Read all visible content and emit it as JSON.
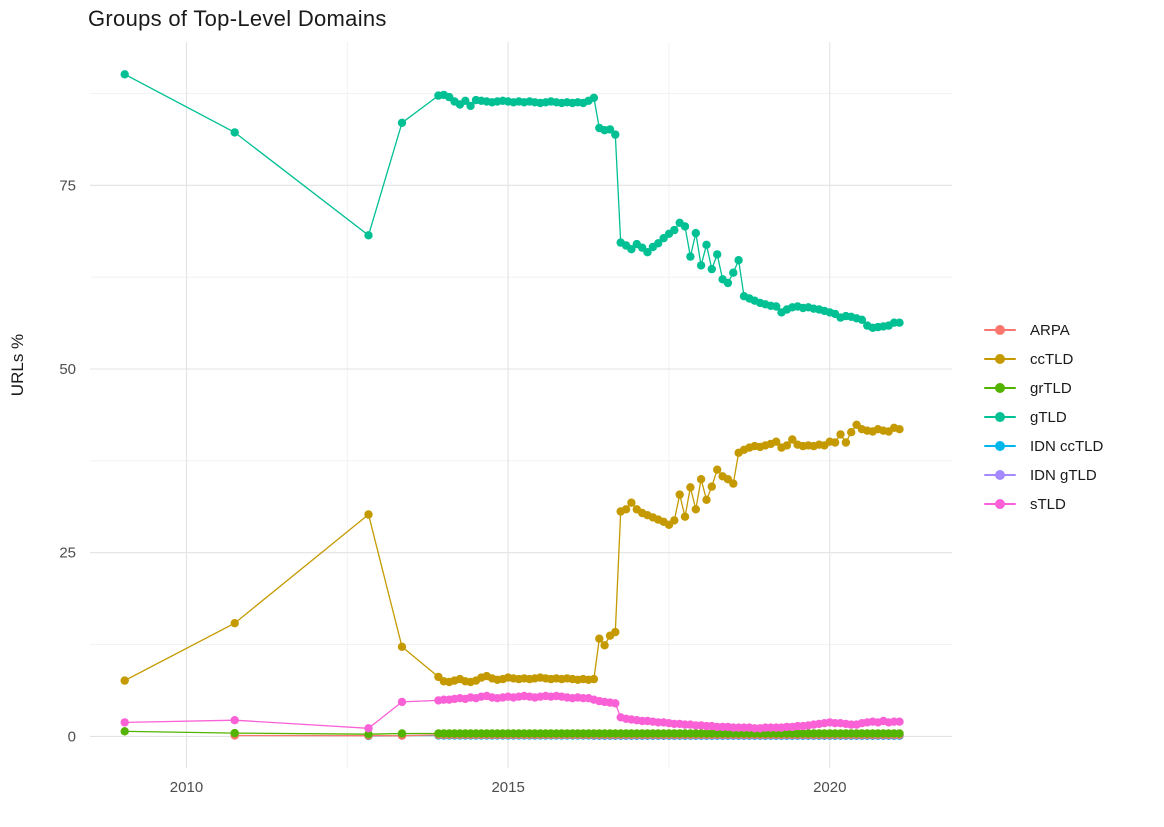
{
  "chart_data": {
    "type": "line",
    "title": "Groups of Top-Level Domains",
    "xlabel": "",
    "ylabel": "URLs %",
    "x_unit": "year",
    "xlim": [
      2008.5,
      2021.9
    ],
    "ylim": [
      -4.3,
      94.5
    ],
    "x_ticks": [
      2010,
      2015,
      2020
    ],
    "x_minor_gridlines": [
      2012.5,
      2017.5
    ],
    "y_ticks": [
      0,
      25,
      50,
      75
    ],
    "y_minor_gridlines": [
      12.5,
      37.5,
      62.5,
      87.5
    ],
    "grid": "on",
    "legend_position": "right",
    "draw_order": [
      "IDN gTLD",
      "IDN ccTLD",
      "ARPA",
      "grTLD",
      "sTLD",
      "ccTLD",
      "gTLD"
    ],
    "series": [
      {
        "name": "ARPA",
        "color": "#F8766D",
        "sparse": [
          [
            2010.75,
            0.12
          ],
          [
            2012.83,
            0.1
          ],
          [
            2013.35,
            0.1
          ]
        ],
        "fill": {
          "from": 2013.9167,
          "to": 2021.0833,
          "step": 0.083333,
          "y": 0.2
        }
      },
      {
        "name": "ccTLD",
        "color": "#C49A00",
        "sparse": [
          [
            2009.04,
            7.6
          ],
          [
            2010.75,
            15.4
          ],
          [
            2012.83,
            30.2
          ],
          [
            2013.35,
            12.2
          ]
        ],
        "dense": {
          "start": 2013.9167,
          "step": 0.083333,
          "y": [
            8.1,
            7.5,
            7.4,
            7.6,
            7.8,
            7.5,
            7.4,
            7.6,
            8.0,
            8.2,
            7.9,
            7.7,
            7.8,
            8.0,
            7.9,
            7.8,
            7.9,
            7.8,
            7.9,
            8.0,
            7.9,
            7.8,
            7.9,
            7.8,
            7.9,
            7.8,
            7.7,
            7.8,
            7.7,
            7.8,
            13.3,
            12.4,
            13.7,
            14.2,
            30.6,
            30.9,
            31.8,
            30.9,
            30.4,
            30.1,
            29.8,
            29.5,
            29.2,
            28.8,
            29.4,
            32.9,
            29.9,
            33.9,
            30.9,
            35.0,
            32.2,
            34.0,
            36.3,
            35.4,
            35.0,
            34.4,
            38.6,
            39.0,
            39.3,
            39.5,
            39.4,
            39.6,
            39.8,
            40.1,
            39.3,
            39.6,
            40.4,
            39.7,
            39.5,
            39.6,
            39.5,
            39.7,
            39.6,
            40.1,
            40.0,
            41.1,
            40.0,
            41.4,
            42.4,
            41.8,
            41.6,
            41.5,
            41.8,
            41.6,
            41.5,
            42.0,
            41.8
          ]
        }
      },
      {
        "name": "grTLD",
        "color": "#53B400",
        "sparse": [
          [
            2009.04,
            0.7
          ],
          [
            2010.75,
            0.45
          ],
          [
            2012.83,
            0.3
          ],
          [
            2013.35,
            0.4
          ]
        ],
        "fill": {
          "from": 2013.9167,
          "to": 2021.0833,
          "step": 0.083333,
          "y": 0.4
        }
      },
      {
        "name": "gTLD",
        "color": "#00C094",
        "sparse": [
          [
            2009.04,
            90.1
          ],
          [
            2010.75,
            82.2
          ],
          [
            2012.83,
            68.2
          ],
          [
            2013.35,
            83.5
          ]
        ],
        "dense": {
          "start": 2013.9167,
          "step": 0.083333,
          "y": [
            87.2,
            87.3,
            87.0,
            86.4,
            86.0,
            86.5,
            85.8,
            86.6,
            86.5,
            86.4,
            86.3,
            86.4,
            86.5,
            86.4,
            86.3,
            86.4,
            86.3,
            86.4,
            86.3,
            86.2,
            86.3,
            86.4,
            86.3,
            86.2,
            86.3,
            86.2,
            86.3,
            86.2,
            86.5,
            86.9,
            82.8,
            82.5,
            82.6,
            81.9,
            67.2,
            66.8,
            66.3,
            67.0,
            66.5,
            65.9,
            66.6,
            67.1,
            67.8,
            68.4,
            68.9,
            69.9,
            69.4,
            65.3,
            68.5,
            64.1,
            66.9,
            63.6,
            65.6,
            62.2,
            61.7,
            63.1,
            64.8,
            59.9,
            59.6,
            59.3,
            59.0,
            58.8,
            58.6,
            58.5,
            57.7,
            58.1,
            58.4,
            58.5,
            58.3,
            58.4,
            58.2,
            58.1,
            57.9,
            57.7,
            57.5,
            57.0,
            57.2,
            57.1,
            56.9,
            56.7,
            55.9,
            55.6,
            55.7,
            55.8,
            55.9,
            56.3,
            56.3
          ]
        }
      },
      {
        "name": "IDN ccTLD",
        "color": "#00B6EB",
        "sparse": [
          [
            2012.83,
            0.06
          ],
          [
            2013.35,
            0.12
          ]
        ],
        "fill": {
          "from": 2013.9167,
          "to": 2021.0833,
          "step": 0.083333,
          "y": 0.12
        }
      },
      {
        "name": "IDN gTLD",
        "color": "#A58AFF",
        "sparse": [],
        "fill": {
          "from": 2016.3333,
          "to": 2021.0833,
          "step": 0.083333,
          "y": 0.08
        }
      },
      {
        "name": "sTLD",
        "color": "#FB61D7",
        "sparse": [
          [
            2009.04,
            1.9
          ],
          [
            2010.75,
            2.2
          ],
          [
            2012.83,
            1.1
          ],
          [
            2013.35,
            4.7
          ]
        ],
        "dense": {
          "start": 2013.9167,
          "step": 0.083333,
          "y": [
            4.9,
            5.0,
            5.0,
            5.1,
            5.2,
            5.1,
            5.3,
            5.2,
            5.4,
            5.5,
            5.3,
            5.2,
            5.3,
            5.4,
            5.3,
            5.4,
            5.5,
            5.4,
            5.3,
            5.4,
            5.5,
            5.4,
            5.5,
            5.4,
            5.3,
            5.2,
            5.3,
            5.2,
            5.2,
            5.0,
            4.8,
            4.7,
            4.6,
            4.5,
            2.6,
            2.4,
            2.3,
            2.2,
            2.1,
            2.1,
            2.0,
            1.9,
            1.9,
            1.8,
            1.7,
            1.7,
            1.6,
            1.6,
            1.5,
            1.5,
            1.4,
            1.4,
            1.3,
            1.3,
            1.3,
            1.2,
            1.2,
            1.2,
            1.2,
            1.1,
            1.1,
            1.2,
            1.2,
            1.2,
            1.2,
            1.3,
            1.3,
            1.4,
            1.4,
            1.5,
            1.6,
            1.7,
            1.8,
            1.9,
            1.8,
            1.8,
            1.7,
            1.6,
            1.6,
            1.8,
            1.9,
            2.0,
            1.9,
            2.1,
            1.9,
            2.0,
            2.0
          ]
        }
      }
    ],
    "colors": {
      "background": "#ffffff",
      "major_grid": "#e3e3e3",
      "minor_grid": "#f0f0f0",
      "tick_text": "#4d4d4d",
      "title_text": "#1a1a1a"
    }
  }
}
